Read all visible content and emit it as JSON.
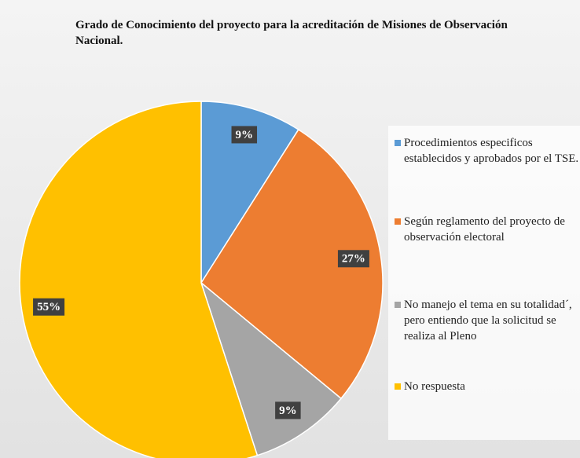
{
  "chart_data": {
    "type": "pie",
    "title": "Grado de Conocimiento del proyecto para la acreditación de Misiones de Observación Nacional.",
    "categories": [
      "Procedimientos especificos establecidos y aprobados por el TSE.",
      "Según reglamento del proyecto de observación electoral",
      "No manejo el tema en su totalidad´, pero entiendo que la solicitud se realiza al Pleno",
      "No respuesta"
    ],
    "values": [
      9,
      27,
      9,
      55
    ],
    "value_labels": [
      "9%",
      "27%",
      "9%",
      "55%"
    ],
    "colors": [
      "#5b9bd5",
      "#ed7d31",
      "#a5a5a5",
      "#ffc000"
    ],
    "legend": "right"
  }
}
